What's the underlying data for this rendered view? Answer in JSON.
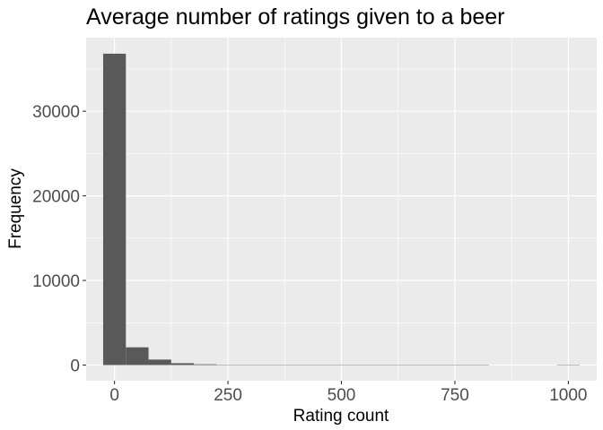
{
  "chart_data": {
    "type": "bar",
    "title": "Average number of ratings given to a beer",
    "xlabel": "Rating count",
    "ylabel": "Frequency",
    "xlim": [
      -62.5,
      1062.5
    ],
    "ylim": [
      -1850,
      38700
    ],
    "x_ticks": [
      0,
      250,
      500,
      750,
      1000
    ],
    "y_ticks": [
      0,
      10000,
      20000,
      30000
    ],
    "bin_width": 50,
    "bins": [
      {
        "center": 0,
        "value": 36800
      },
      {
        "center": 50,
        "value": 2100
      },
      {
        "center": 100,
        "value": 650
      },
      {
        "center": 150,
        "value": 220
      },
      {
        "center": 200,
        "value": 90
      },
      {
        "center": 250,
        "value": 30
      },
      {
        "center": 300,
        "value": 12
      },
      {
        "center": 350,
        "value": 6
      },
      {
        "center": 400,
        "value": 4
      },
      {
        "center": 450,
        "value": 2
      },
      {
        "center": 500,
        "value": 2
      },
      {
        "center": 550,
        "value": 1
      },
      {
        "center": 600,
        "value": 1
      },
      {
        "center": 650,
        "value": 1
      },
      {
        "center": 700,
        "value": 1
      },
      {
        "center": 750,
        "value": 1
      },
      {
        "center": 800,
        "value": 1
      },
      {
        "center": 850,
        "value": 0
      },
      {
        "center": 900,
        "value": 0
      },
      {
        "center": 950,
        "value": 0
      },
      {
        "center": 1000,
        "value": 1
      }
    ],
    "grid": true,
    "colors": {
      "panel_background": "#ebebeb",
      "grid": "#ffffff",
      "bar_fill": "#595959",
      "tick_text": "#4d4d4d",
      "tick_mark": "#333333"
    }
  }
}
